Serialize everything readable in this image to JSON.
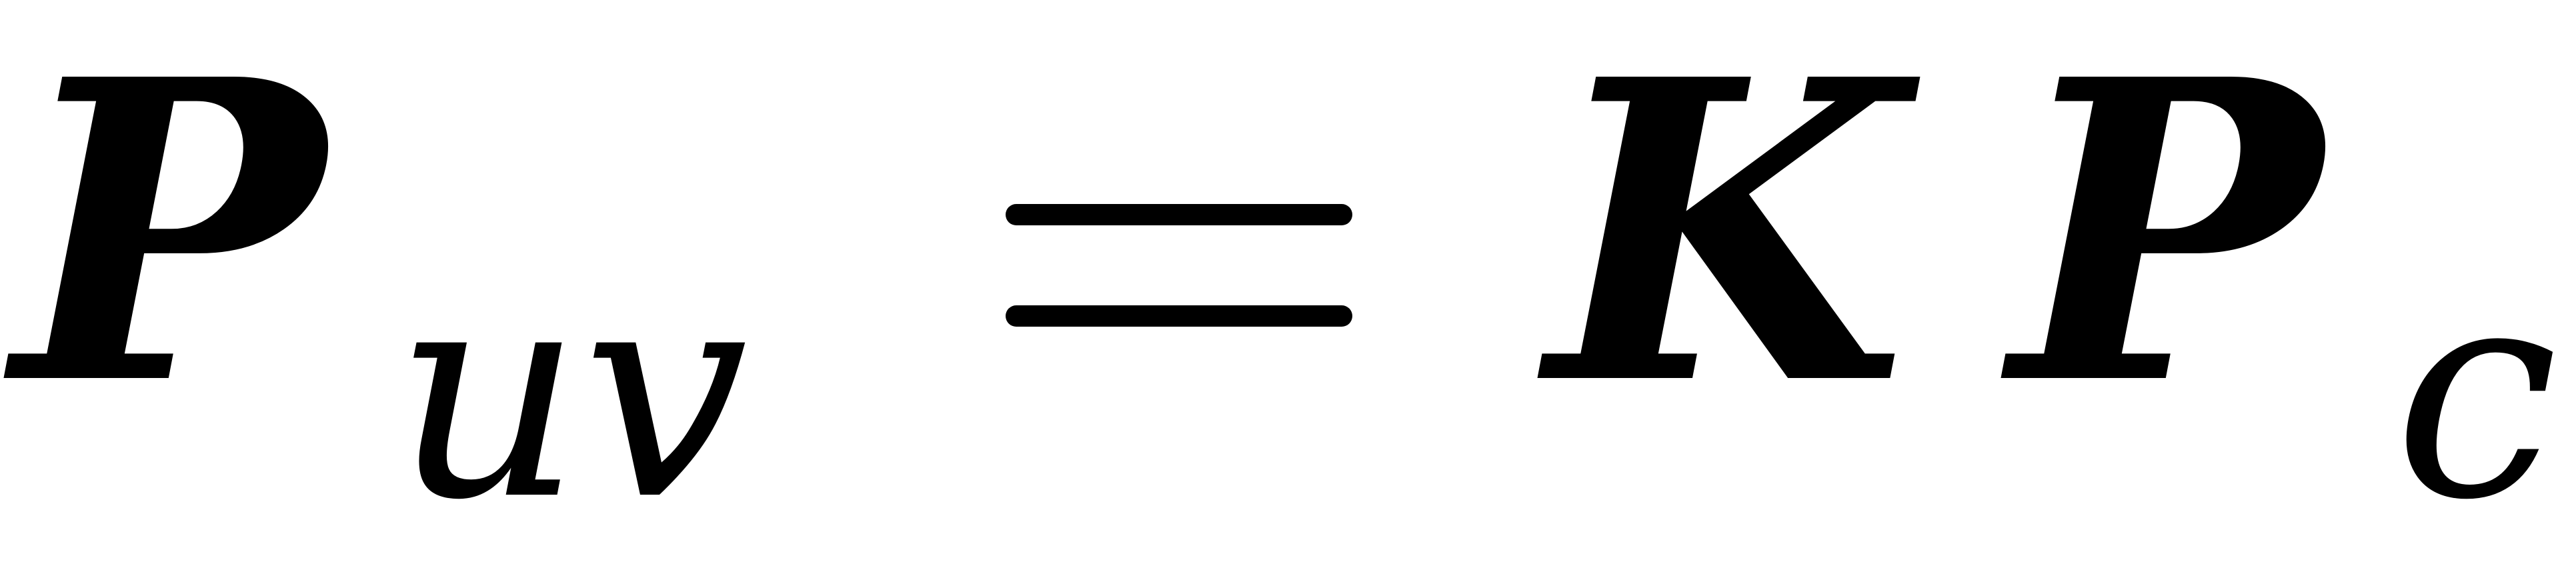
{
  "equation": {
    "lhs": {
      "main": "P",
      "subscript": "uv"
    },
    "relation": "=",
    "rhs": {
      "factor_1": "K",
      "factor_2": "P",
      "subscript": "c"
    }
  }
}
